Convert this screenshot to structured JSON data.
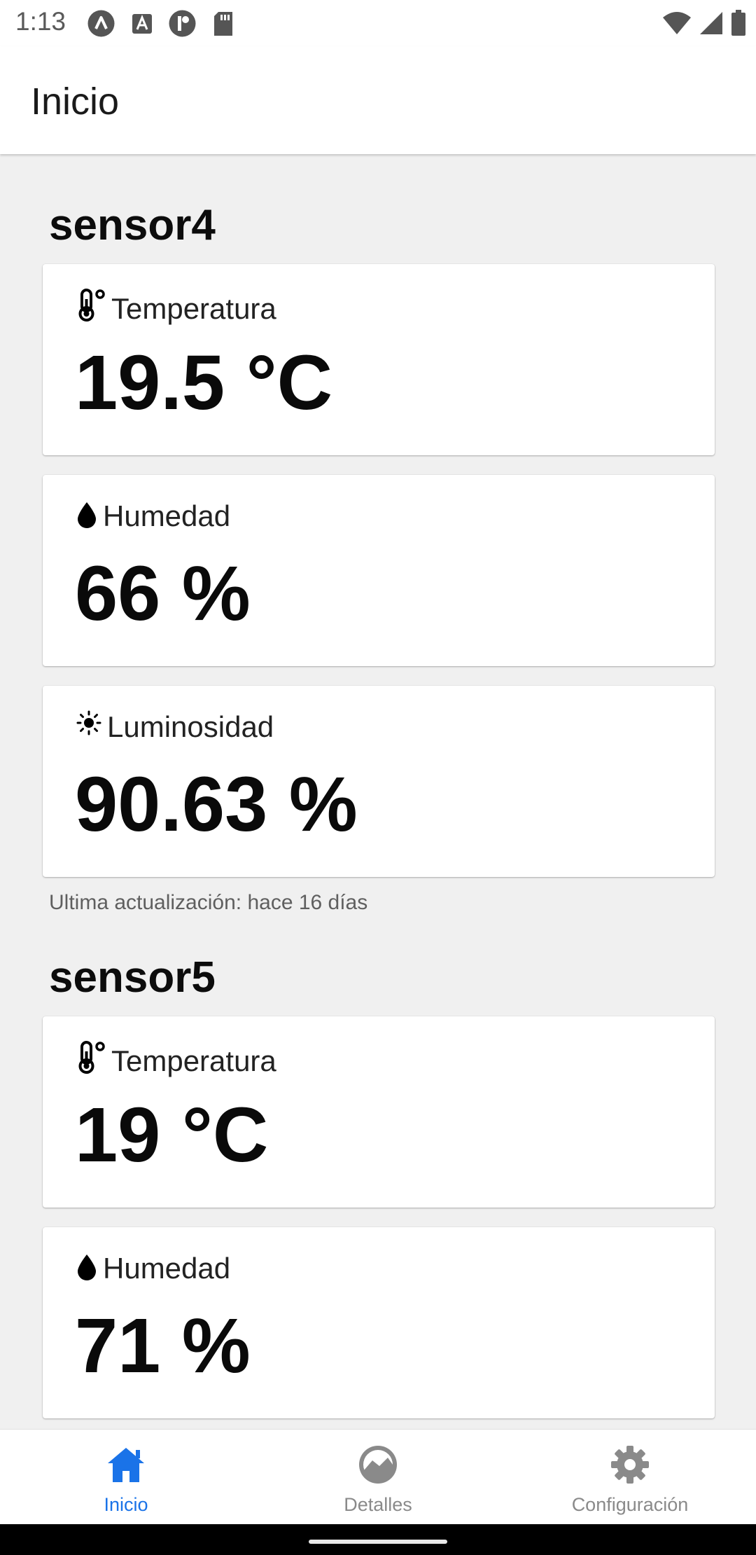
{
  "status": {
    "time": "1:13",
    "left_icons": [
      "assistant-icon",
      "font-icon",
      "accessibility-icon",
      "sd-card-icon"
    ],
    "right_icons": [
      "wifi-icon",
      "signal-icon",
      "battery-icon"
    ]
  },
  "app_bar": {
    "title": "Inicio"
  },
  "sensors": [
    {
      "name": "sensor4",
      "cards": [
        {
          "icon": "thermometer-icon",
          "label": "Temperatura",
          "value": "19.5 °C"
        },
        {
          "icon": "water-drop-icon",
          "label": "Humedad",
          "value": "66 %"
        },
        {
          "icon": "sun-icon",
          "label": "Luminosidad",
          "value": "90.63 %"
        }
      ],
      "updated": "Ultima actualización: hace 16 días"
    },
    {
      "name": "sensor5",
      "cards": [
        {
          "icon": "thermometer-icon",
          "label": "Temperatura",
          "value": "19 °C"
        },
        {
          "icon": "water-drop-icon",
          "label": "Humedad",
          "value": "71 %"
        }
      ]
    }
  ],
  "bottom_nav": {
    "items": [
      {
        "icon": "home-icon",
        "label": "Inicio",
        "active": true
      },
      {
        "icon": "details-icon",
        "label": "Detalles",
        "active": false
      },
      {
        "icon": "gear-icon",
        "label": "Configuración",
        "active": false
      }
    ]
  },
  "colors": {
    "accent": "#1a73e8",
    "inactive": "#8a8a8a",
    "background": "#f0f0f0"
  }
}
